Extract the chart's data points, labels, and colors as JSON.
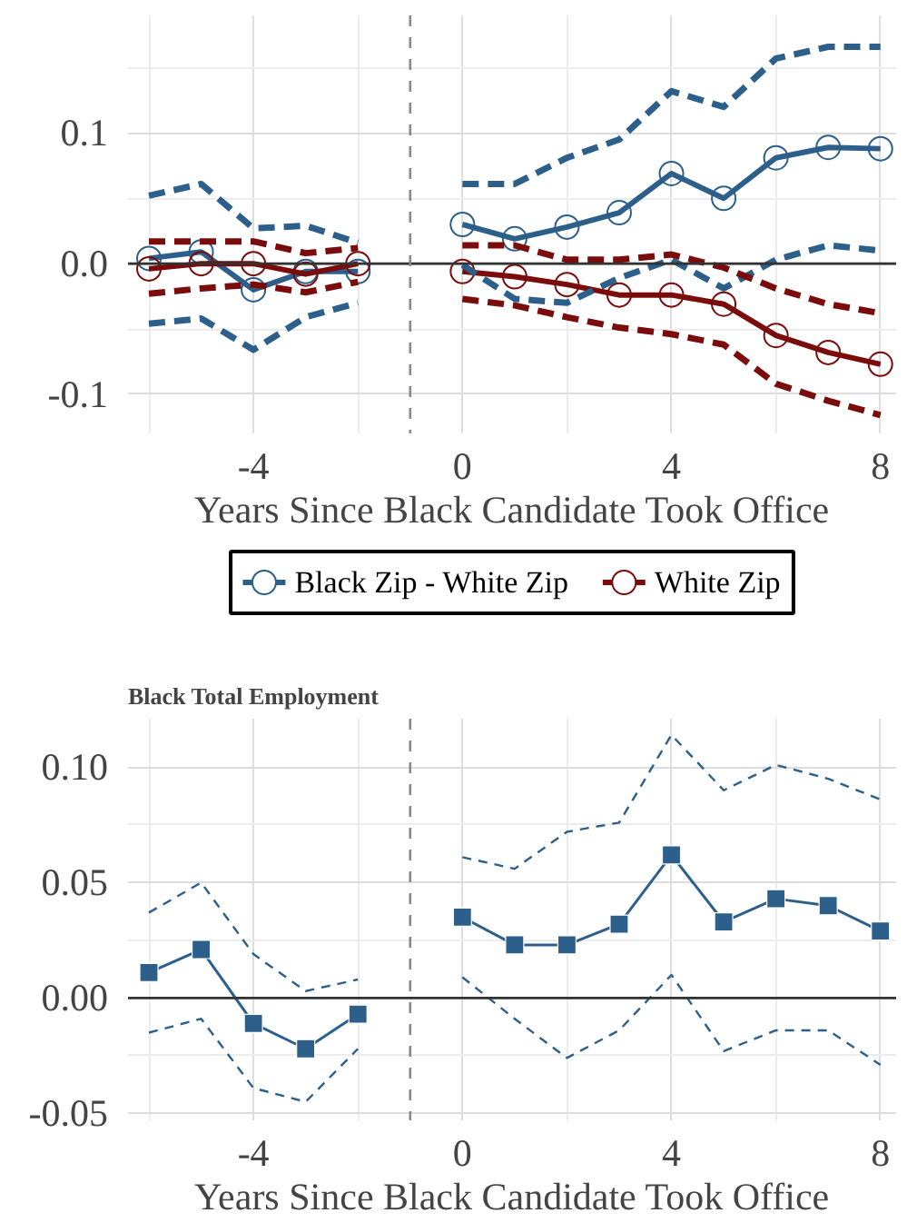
{
  "chart_data": [
    {
      "type": "line",
      "xlabel": "Years Since Black Candidate Took Office",
      "x": [
        -6,
        -5,
        -4,
        -3,
        -2,
        -1,
        0,
        1,
        2,
        3,
        4,
        5,
        6,
        7,
        8
      ],
      "series": [
        {
          "name": "Black Zip - White Zip",
          "color": "#2c5f8a",
          "values": [
            0.004,
            0.009,
            -0.02,
            -0.006,
            -0.006,
            null,
            0.03,
            0.019,
            0.028,
            0.039,
            0.069,
            0.05,
            0.081,
            0.089,
            0.088
          ]
        },
        {
          "name": "White Zip",
          "color": "#7a0c0c",
          "values": [
            -0.004,
            0.0,
            0.0,
            -0.008,
            0.0,
            null,
            -0.006,
            -0.01,
            -0.016,
            -0.024,
            -0.024,
            -0.031,
            -0.055,
            -0.068,
            -0.077
          ]
        },
        {
          "color": "#2c5f8a",
          "line_style": "dashed",
          "marker": "none",
          "values": [
            0.052,
            0.061,
            0.027,
            0.029,
            0.016,
            null,
            0.061,
            0.061,
            0.081,
            0.095,
            0.132,
            0.12,
            0.157,
            0.166,
            0.166
          ]
        },
        {
          "color": "#2c5f8a",
          "line_style": "dashed",
          "marker": "none",
          "values": [
            -0.046,
            -0.042,
            -0.066,
            -0.041,
            -0.03,
            null,
            -0.001,
            -0.027,
            -0.03,
            -0.011,
            0.003,
            -0.019,
            0.003,
            0.014,
            0.01
          ]
        },
        {
          "color": "#7a0c0c",
          "line_style": "dashed",
          "marker": "none",
          "values": [
            0.017,
            0.017,
            0.017,
            0.008,
            0.012,
            null,
            0.014,
            0.014,
            0.003,
            0.003,
            0.007,
            -0.003,
            -0.019,
            -0.031,
            -0.038
          ]
        },
        {
          "color": "#7a0c0c",
          "line_style": "dashed",
          "marker": "none",
          "values": [
            -0.023,
            -0.019,
            -0.016,
            -0.022,
            -0.014,
            null,
            -0.027,
            -0.032,
            -0.041,
            -0.049,
            -0.054,
            -0.062,
            -0.092,
            -0.105,
            -0.116
          ]
        }
      ],
      "xlim": [
        -6.4,
        8.3
      ],
      "ylim": [
        -0.13,
        0.19
      ],
      "xticks": [
        -4,
        0,
        4,
        8
      ],
      "yticks": [
        {
          "value": -0.1,
          "label": "-0.1"
        },
        {
          "value": 0,
          "label": "0.0"
        },
        {
          "value": 0.1,
          "label": "0.1"
        }
      ],
      "ref_lines": [
        {
          "axis": "y",
          "value": 0,
          "color": "#333333",
          "line_style": "solid"
        },
        {
          "axis": "x",
          "value": -1,
          "color": "#888888",
          "line_style": "dashed"
        }
      ],
      "grid": true,
      "legend": "bottom",
      "marker": "circle",
      "line_style": "solid"
    },
    {
      "type": "line",
      "title": "Black Total Employment",
      "xlabel": "Years Since Black Candidate Took Office",
      "x": [
        -6,
        -5,
        -4,
        -3,
        -2,
        -1,
        0,
        1,
        2,
        3,
        4,
        5,
        6,
        7,
        8
      ],
      "series": [
        {
          "color": "#2c5f8a",
          "values": [
            0.011,
            0.021,
            -0.011,
            -0.022,
            -0.007,
            null,
            0.035,
            0.023,
            0.023,
            0.032,
            0.062,
            0.033,
            0.043,
            0.04,
            0.029
          ]
        },
        {
          "color": "#2c5f8a",
          "line_style": "dashed",
          "marker": "none",
          "values": [
            0.037,
            0.05,
            0.019,
            0.003,
            0.008,
            null,
            0.061,
            0.056,
            0.072,
            0.076,
            0.114,
            0.09,
            0.101,
            0.095,
            0.086
          ]
        },
        {
          "color": "#2c5f8a",
          "line_style": "dashed",
          "marker": "none",
          "values": [
            -0.015,
            -0.009,
            -0.039,
            -0.045,
            -0.022,
            null,
            0.009,
            -0.009,
            -0.026,
            -0.014,
            0.01,
            -0.023,
            -0.014,
            -0.014,
            -0.029
          ]
        }
      ],
      "xlim": [
        -6.4,
        8.3
      ],
      "ylim": [
        -0.053,
        0.121
      ],
      "xticks": [
        -4,
        0,
        4,
        8
      ],
      "yticks": [
        {
          "value": -0.05,
          "label": "-0.05"
        },
        {
          "value": 0,
          "label": "0.00"
        },
        {
          "value": 0.05,
          "label": "0.05"
        },
        {
          "value": 0.1,
          "label": "0.10"
        }
      ],
      "ref_lines": [
        {
          "axis": "y",
          "value": 0,
          "color": "#333333",
          "line_style": "solid"
        },
        {
          "axis": "x",
          "value": -1,
          "color": "#888888",
          "line_style": "dashed"
        }
      ],
      "grid": true,
      "legend": false,
      "marker": "square",
      "line_style": "solid"
    }
  ]
}
